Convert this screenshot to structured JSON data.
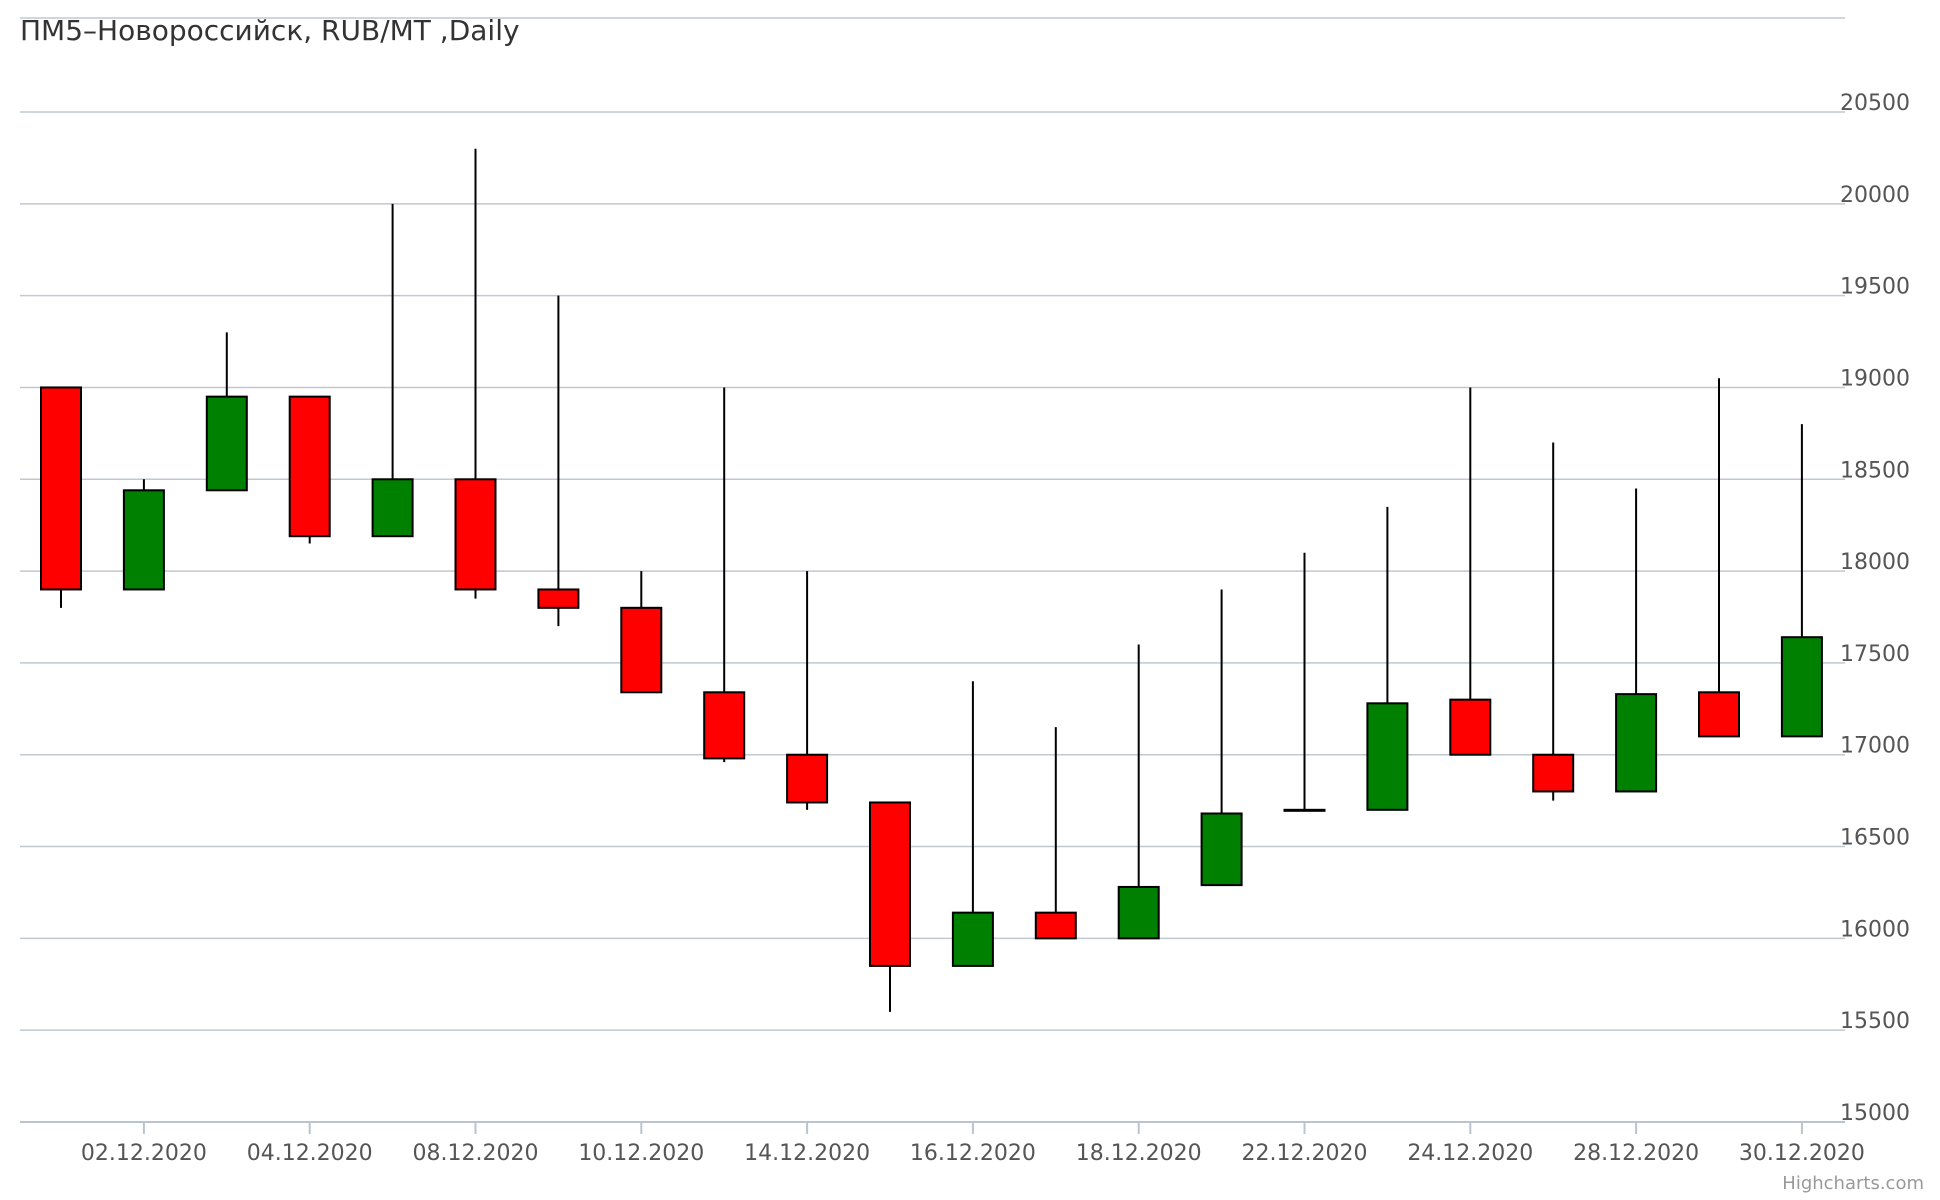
{
  "chart_data": {
    "type": "candlestick",
    "title": "ПМ5–Новороссийск, RUB/MT ,Daily",
    "y_axis": {
      "min": 15000,
      "max": 20500,
      "tick_labels": [
        "15000",
        "15500",
        "16000",
        "16500",
        "17000",
        "17500",
        "18000",
        "18500",
        "19000",
        "19500",
        "20000",
        "20500"
      ],
      "position": "right",
      "grid": true
    },
    "x_axis": {
      "tick_labels": [
        "02.12.2020",
        "04.12.2020",
        "08.12.2020",
        "10.12.2020",
        "14.12.2020",
        "16.12.2020",
        "18.12.2020",
        "22.12.2020",
        "24.12.2020",
        "28.12.2020",
        "30.12.2020"
      ]
    },
    "colors": {
      "up": "#008000",
      "down": "#ff0000",
      "outline": "#000000",
      "grid": "#c0c8d0"
    },
    "candles": [
      {
        "open": 19000,
        "high": 19000,
        "low": 17800,
        "close": 17900
      },
      {
        "open": 17900,
        "high": 18500,
        "low": 17900,
        "close": 18440
      },
      {
        "open": 18440,
        "high": 19300,
        "low": 18440,
        "close": 18950
      },
      {
        "open": 18950,
        "high": 18950,
        "low": 18150,
        "close": 18190
      },
      {
        "open": 18190,
        "high": 20000,
        "low": 18190,
        "close": 18500
      },
      {
        "open": 18500,
        "high": 20300,
        "low": 17850,
        "close": 17900
      },
      {
        "open": 17900,
        "high": 19500,
        "low": 17700,
        "close": 17800
      },
      {
        "open": 17800,
        "high": 18000,
        "low": 17340,
        "close": 17340
      },
      {
        "open": 17340,
        "high": 19000,
        "low": 16960,
        "close": 16980
      },
      {
        "open": 17000,
        "high": 18000,
        "low": 16700,
        "close": 16740
      },
      {
        "open": 16740,
        "high": 16740,
        "low": 15600,
        "close": 15850
      },
      {
        "open": 15850,
        "high": 17400,
        "low": 15850,
        "close": 16140
      },
      {
        "open": 16140,
        "high": 17150,
        "low": 16000,
        "close": 16000
      },
      {
        "open": 16000,
        "high": 17600,
        "low": 16000,
        "close": 16280
      },
      {
        "open": 16290,
        "high": 17900,
        "low": 16290,
        "close": 16680
      },
      {
        "open": 16700,
        "high": 18100,
        "low": 16700,
        "close": 16700
      },
      {
        "open": 16700,
        "high": 18350,
        "low": 16700,
        "close": 17280
      },
      {
        "open": 17300,
        "high": 19000,
        "low": 17000,
        "close": 17000
      },
      {
        "open": 17000,
        "high": 18700,
        "low": 16750,
        "close": 16800
      },
      {
        "open": 16800,
        "high": 18450,
        "low": 16800,
        "close": 17330
      },
      {
        "open": 17340,
        "high": 19050,
        "low": 17100,
        "close": 17100
      },
      {
        "open": 17100,
        "high": 18800,
        "low": 17100,
        "close": 17640
      }
    ]
  },
  "credits": "Highcharts.com"
}
